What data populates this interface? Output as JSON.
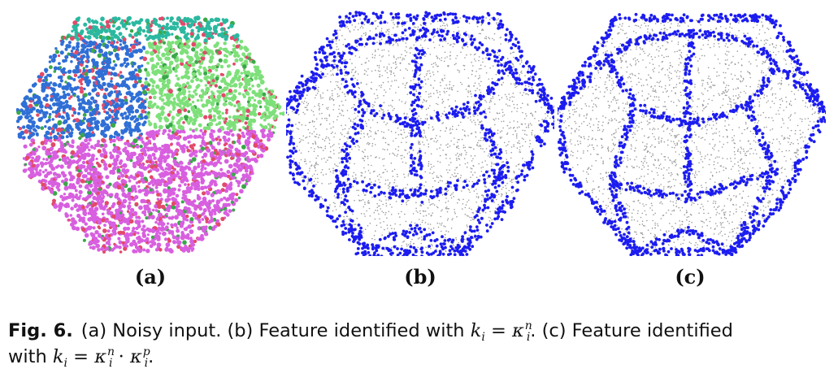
{
  "figure": {
    "panels": [
      {
        "id": "a",
        "label": "(a)"
      },
      {
        "id": "b",
        "label": "(b)"
      },
      {
        "id": "c",
        "label": "(c)"
      }
    ],
    "caption": {
      "fig_number": "Fig. 6.",
      "part1": "(a) Noisy input. (b) Feature identified with ",
      "part2": ". (c) Feature identified",
      "part3": "with ",
      "part4": "."
    },
    "math": {
      "k": "k",
      "i": "i",
      "eq": " = ",
      "kappa": "κ",
      "n": "n",
      "p": "p",
      "dot": " · "
    },
    "colors": {
      "feature_points": "#1c1cf0",
      "surface_points": "#9a9a9a",
      "normal_palette": [
        "#2f6fd6",
        "#2bb8a0",
        "#7ee07a",
        "#d85fe0",
        "#e24a6a",
        "#3aa84a"
      ]
    }
  }
}
